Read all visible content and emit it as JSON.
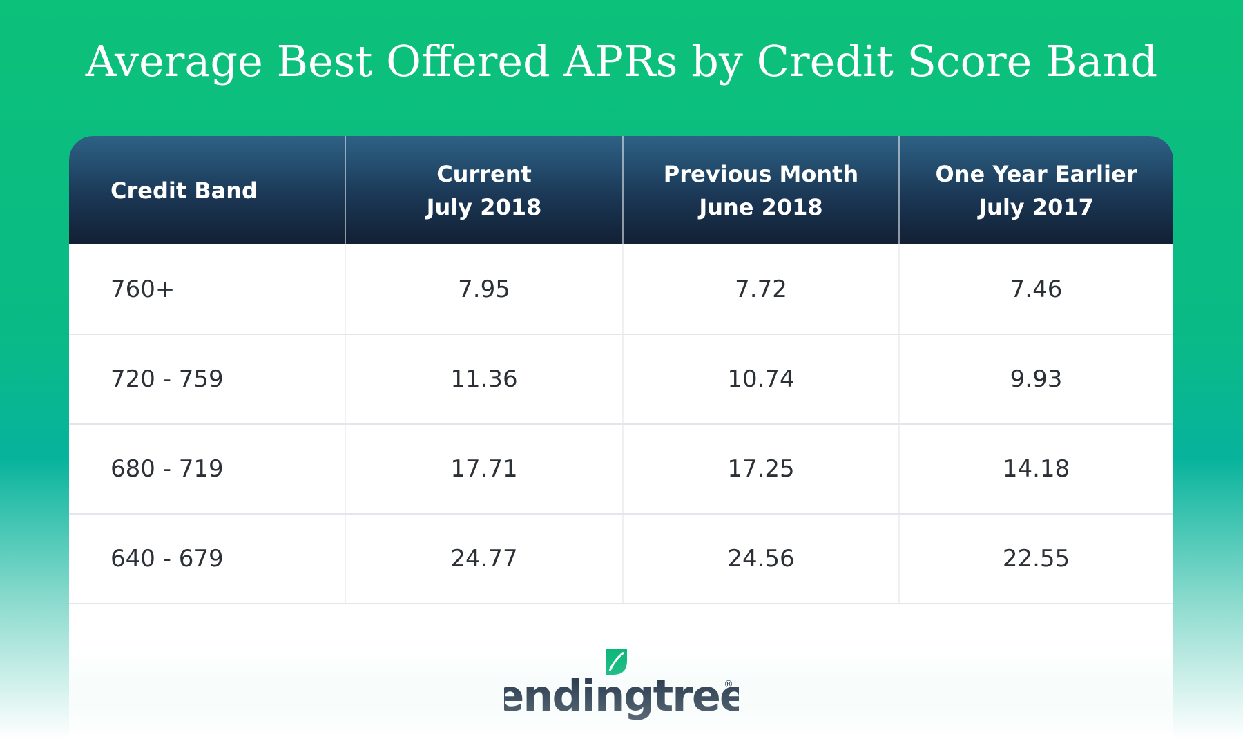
{
  "title": "Average Best Offered APRs by Credit Score Band",
  "table": {
    "header": [
      [
        "Credit Band"
      ],
      [
        "Current",
        "July 2018"
      ],
      [
        "Previous Month",
        "June 2018"
      ],
      [
        "One Year Earlier",
        "July 2017"
      ]
    ],
    "rows": [
      [
        "760+",
        "7.95",
        "7.72",
        "7.46"
      ],
      [
        "720 - 759",
        "11.36",
        "10.74",
        "9.93"
      ],
      [
        "680 - 719",
        "17.71",
        "17.25",
        "14.18"
      ],
      [
        "640 - 679",
        "24.77",
        "24.56",
        "22.55"
      ]
    ]
  },
  "logo": {
    "text": "lendingtree",
    "mark": "®"
  }
}
